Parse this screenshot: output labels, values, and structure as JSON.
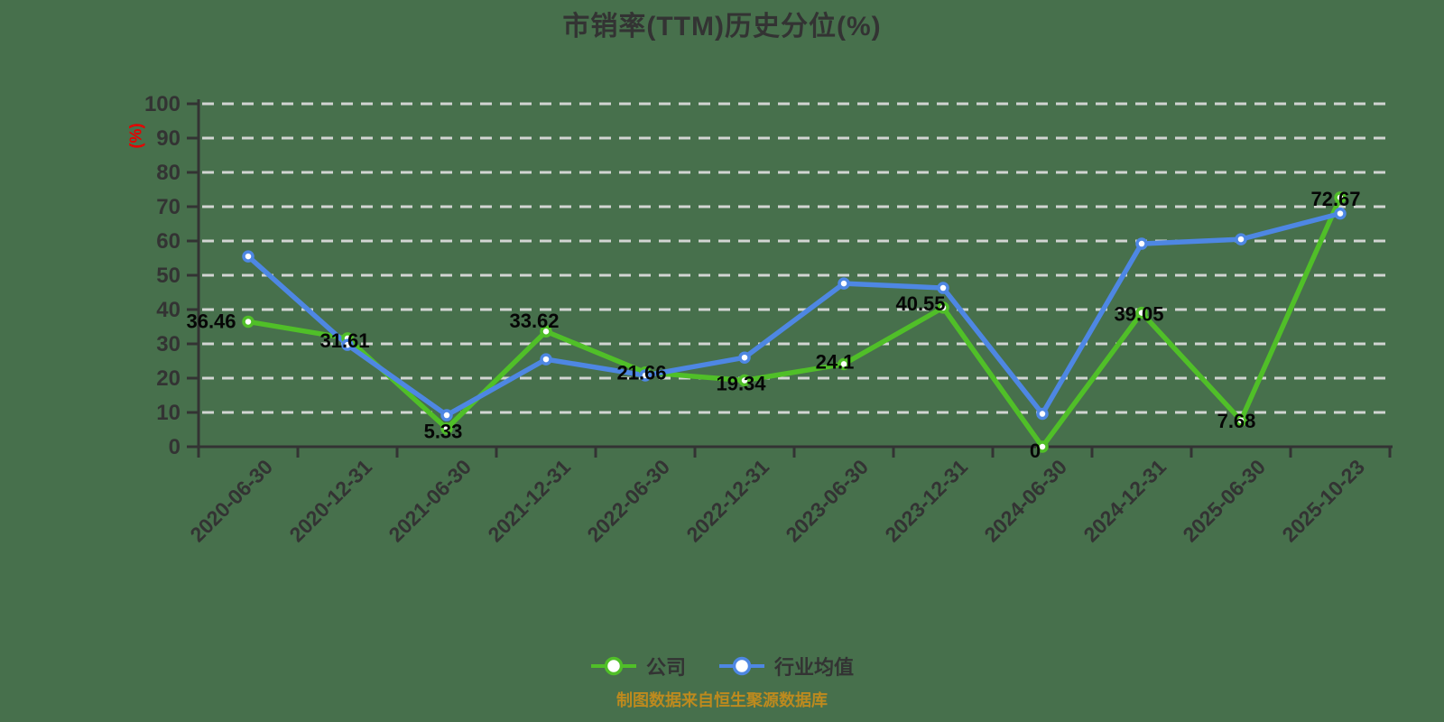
{
  "caption": "制图数据来自恒生聚源数据库",
  "colors": {
    "background": "#47704C",
    "gridline": "#d2d5d2",
    "axis": "#333333",
    "tick_text": "#333333",
    "title_text": "#333333",
    "unit_text": "#e60000",
    "data_label_text": "#060606",
    "caption_text": "#bd8a1e",
    "company_series": "#50bf28",
    "industry_series": "#4e87e3",
    "marker_fill": "#ffffff"
  },
  "chart_data": {
    "type": "line",
    "title": "市销率(TTM)历史分位(%)",
    "xlabel": "",
    "ylabel": "(%)",
    "ylim": [
      0,
      100
    ],
    "ytick_interval": 10,
    "grid": "horizontal-dashed",
    "legend_position": "bottom",
    "categories": [
      "2020-06-30",
      "2020-12-31",
      "2021-06-30",
      "2021-12-31",
      "2022-06-30",
      "2022-12-31",
      "2023-06-30",
      "2023-12-31",
      "2024-06-30",
      "2024-12-31",
      "2025-06-30",
      "2025-10-23"
    ],
    "series": [
      {
        "name": "公司",
        "color": "#50bf28",
        "show_labels": true,
        "values": [
          36.46,
          31.61,
          5.33,
          33.62,
          21.66,
          19.34,
          24.1,
          40.55,
          0,
          39.05,
          7.68,
          72.67
        ],
        "labels": [
          "36.46",
          "31.61",
          "5.33",
          "33.62",
          "21.66",
          "19.34",
          "24.1",
          "40.55",
          "0",
          "39.05",
          "7.68",
          "72.67"
        ]
      },
      {
        "name": "行业均值",
        "color": "#4e87e3",
        "show_labels": false,
        "values": [
          55.5,
          29.7,
          9.2,
          25.5,
          20.8,
          26.0,
          47.6,
          46.3,
          9.6,
          59.2,
          60.5,
          68.0
        ]
      }
    ]
  }
}
